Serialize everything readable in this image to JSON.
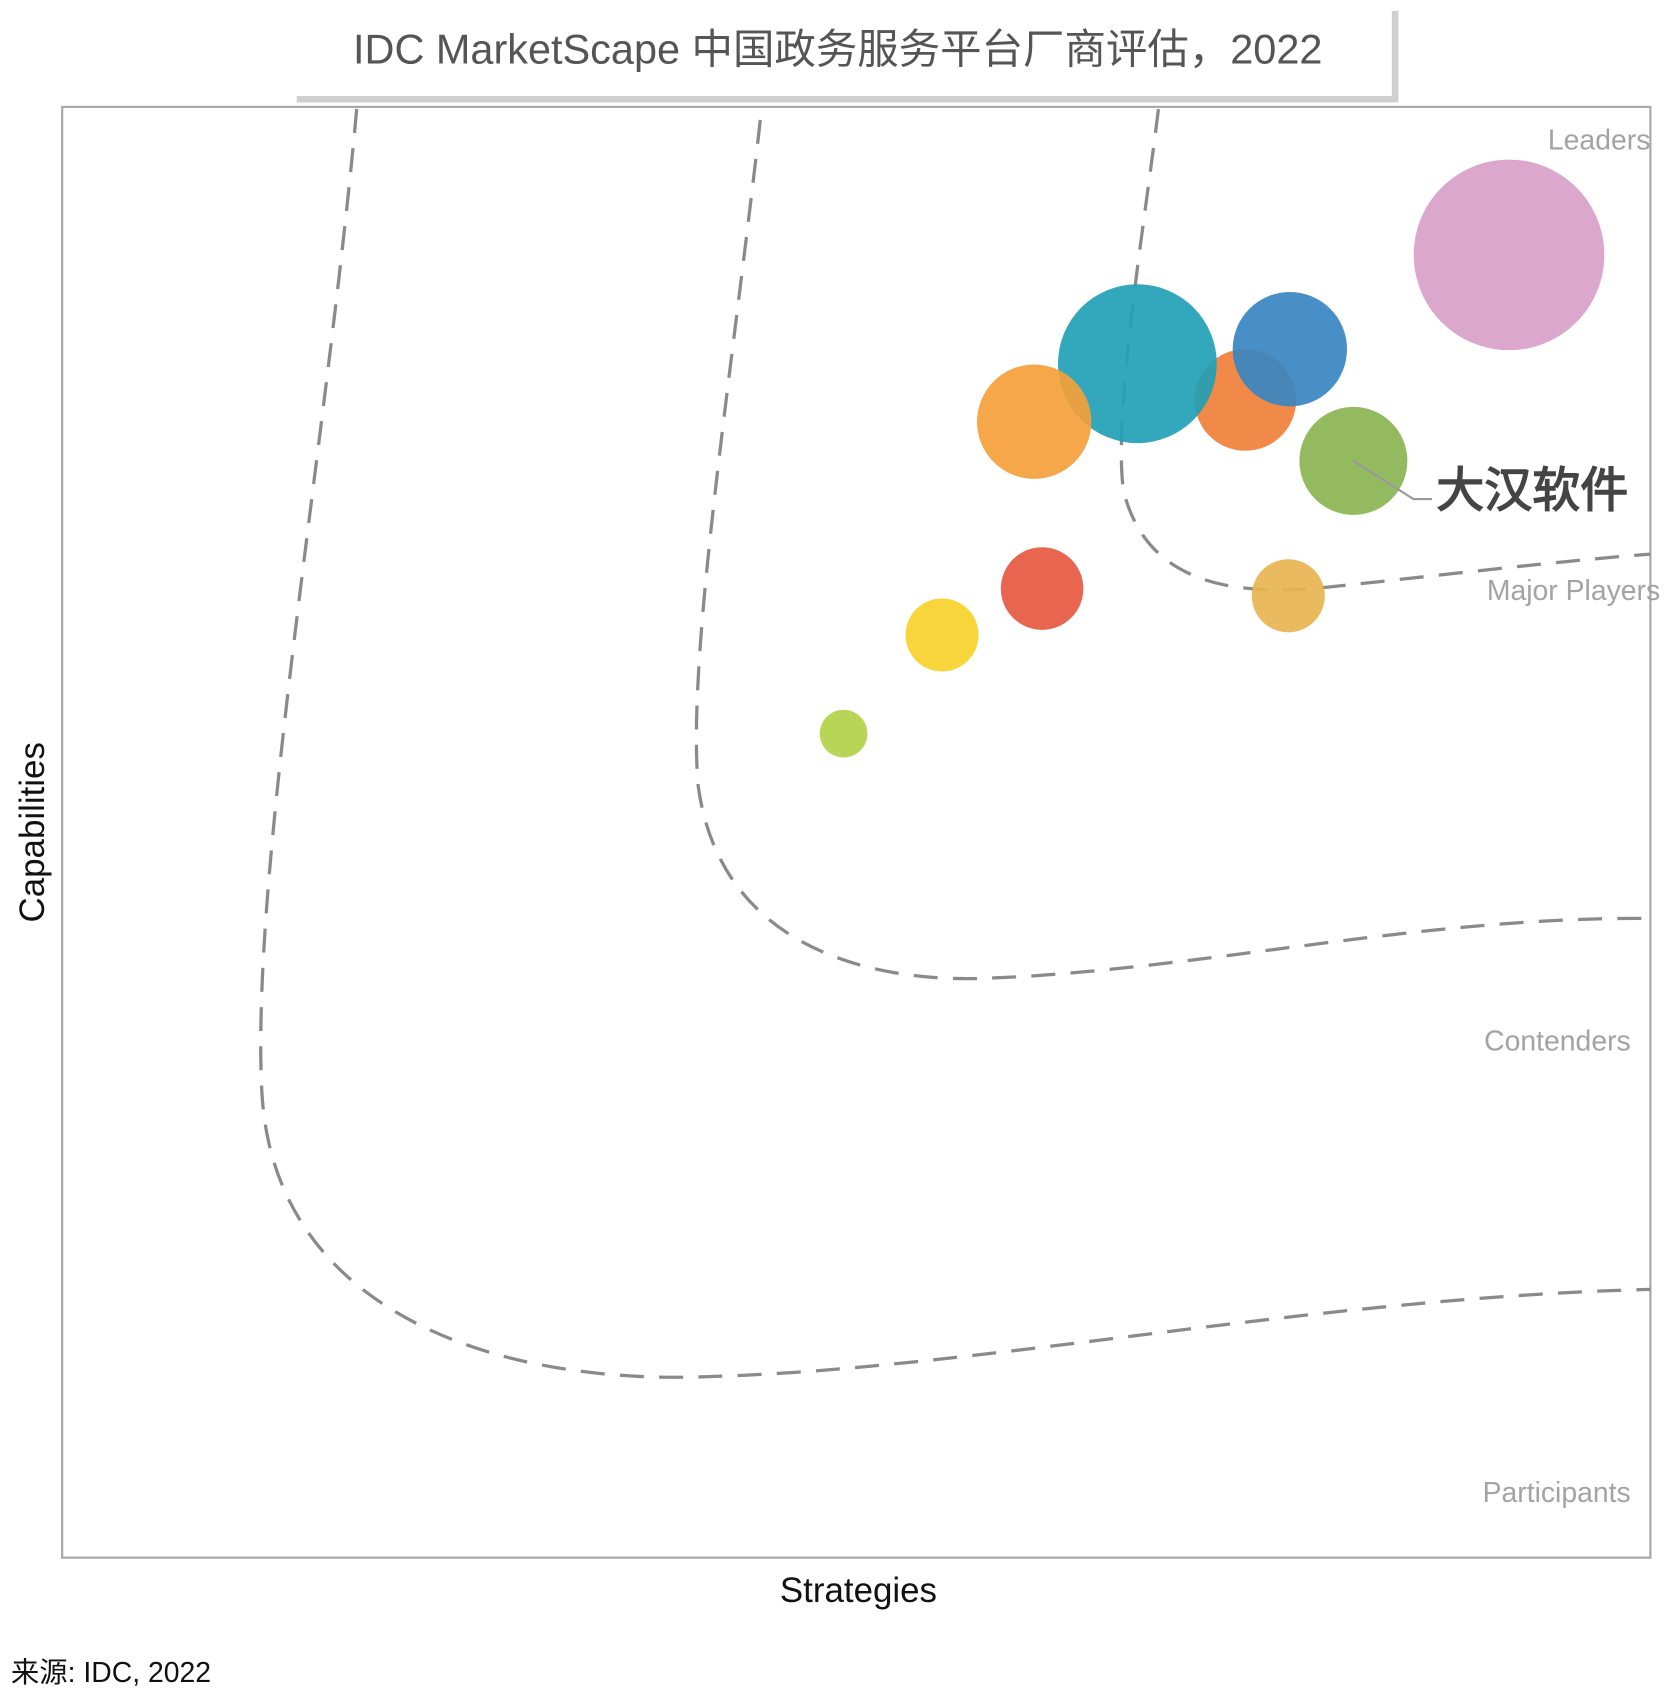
{
  "chart_data": {
    "type": "bubble",
    "title": "IDC MarketScape 中国政务服务平台厂商评估，2022",
    "x_label": "Strategies",
    "y_label": "Capabilities",
    "source": "来源: IDC, 2022",
    "zones": [
      "Leaders",
      "Major Players",
      "Contenders",
      "Participants"
    ],
    "xlim": [
      0,
      1
    ],
    "ylim": [
      0,
      1
    ],
    "x": [
      0.911,
      0.745,
      0.677,
      0.773,
      0.612,
      0.813,
      0.617,
      0.772,
      0.554,
      0.492
    ],
    "y": [
      0.898,
      0.798,
      0.823,
      0.833,
      0.783,
      0.756,
      0.668,
      0.663,
      0.636,
      0.568
    ],
    "sizes": [
      6.0,
      3.2,
      5.0,
      3.6,
      3.6,
      3.4,
      2.6,
      2.3,
      2.3,
      1.5
    ],
    "colors": [
      "#d89fc8",
      "#f0803a",
      "#22a0b5",
      "#3a85c2",
      "#f5a03a",
      "#8bb452",
      "#e65840",
      "#e8b450",
      "#f7d12a",
      "#b3d14a"
    ],
    "annotations": [
      {
        "text": "大汉软件",
        "x": 0.813,
        "y": 0.756
      }
    ]
  }
}
